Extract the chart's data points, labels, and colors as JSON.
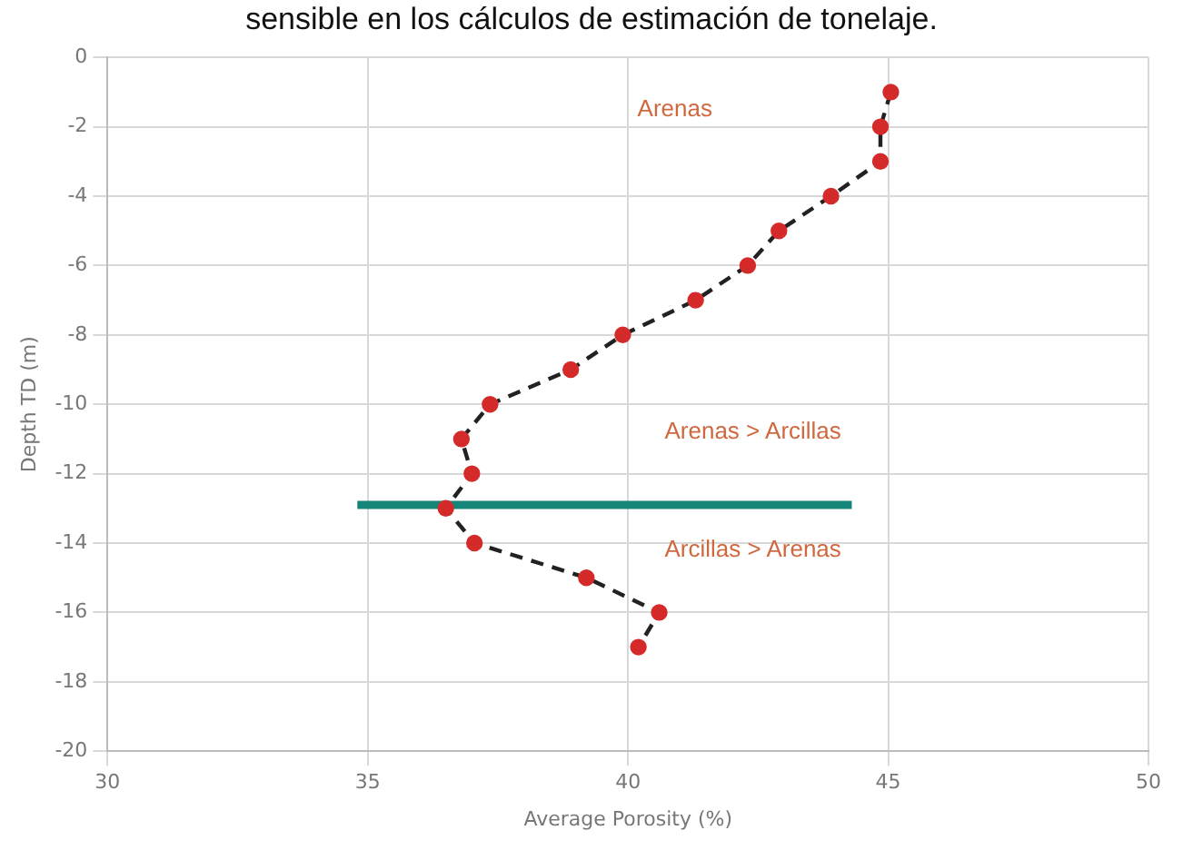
{
  "chart_data": {
    "type": "line",
    "xlabel": "Average Porosity (%)",
    "ylabel": "Depth TD (m)",
    "annotations": [
      "sensible en los cálculos de estimación de tonelaje.",
      "Arenas",
      "Arenas > Arcillas",
      "Arcillas > Arenas"
    ],
    "series": [
      {
        "color": "#222222",
        "colors": [
          "#d42a2a",
          "#d42a2a",
          "#d42a2a",
          "#d42a2a",
          "#d42a2a",
          "#d42a2a",
          "#d42a2a",
          "#d42a2a",
          "#d42a2a",
          "#d42a2a",
          "#d42a2a",
          "#d42a2a",
          "#d42a2a",
          "#d42a2a",
          "#d42a2a",
          "#d42a2a",
          "#d42a2a"
        ],
        "marker": "circle",
        "line_style": "dashed",
        "x": [
          45.05,
          44.85,
          44.85,
          43.9,
          42.9,
          42.3,
          41.3,
          39.9,
          38.9,
          37.35,
          36.8,
          37.0,
          36.5,
          37.05,
          39.2,
          40.6,
          40.2
        ],
        "values": [
          -1,
          -2,
          -3,
          -4,
          -5,
          -6,
          -7,
          -8,
          -9,
          -10,
          -11,
          -12,
          -13,
          -14,
          -15,
          -16,
          -17
        ]
      },
      {
        "color": "#16857a",
        "marker": "none",
        "line_style": "solid",
        "x": [
          34.8,
          44.3
        ],
        "values": [
          -12.9,
          -12.9
        ]
      }
    ],
    "xlim": [
      30,
      50
    ],
    "xticks": [
      30,
      35,
      40,
      45,
      50
    ],
    "ylim": [
      -20,
      0
    ],
    "yticks": [
      -20,
      -18,
      -16,
      -14,
      -12,
      -10,
      -8,
      -6,
      -4,
      -2,
      0
    ],
    "grid": true,
    "legend": false
  }
}
